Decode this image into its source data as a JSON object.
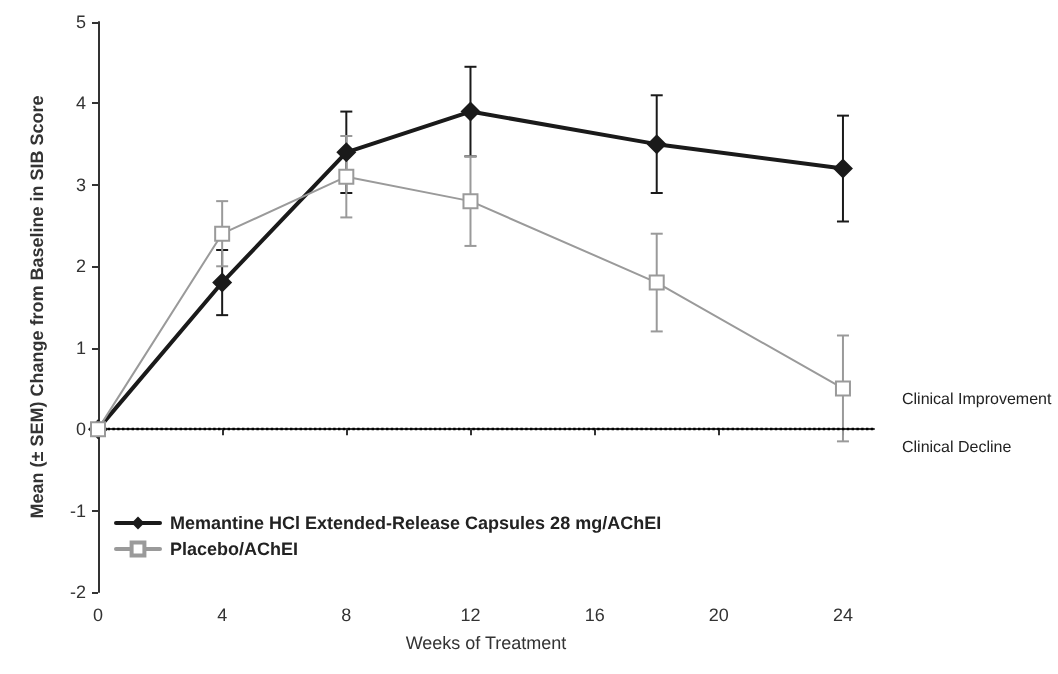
{
  "chart_data": {
    "type": "line",
    "xlabel": "Weeks of Treatment",
    "ylabel": "Mean (± SEM) Change from Baseline in SIB Score",
    "x": [
      0,
      4,
      8,
      12,
      18,
      24
    ],
    "series": [
      {
        "name": "Memantine HCl Extended-Release Capsules 28 mg/AChEI",
        "color": "#1a1a1a",
        "marker": "diamond",
        "values": [
          0,
          1.8,
          3.4,
          3.9,
          3.5,
          3.2
        ],
        "errors": [
          null,
          0.4,
          0.5,
          0.55,
          0.6,
          0.65
        ]
      },
      {
        "name": "Placebo/AChEI",
        "color": "#9a9a9a",
        "marker": "square",
        "values": [
          0,
          2.4,
          3.1,
          2.8,
          1.8,
          0.5
        ],
        "errors": [
          null,
          0.4,
          0.5,
          0.55,
          0.6,
          0.65
        ]
      }
    ],
    "xlim": [
      0,
      25
    ],
    "xticks": [
      0,
      4,
      8,
      12,
      16,
      20,
      24
    ],
    "ylim": [
      -2,
      5
    ],
    "yticks": [
      -2,
      -1,
      0,
      1,
      2,
      3,
      4,
      5
    ],
    "ref_lines": [
      {
        "axis": "y",
        "value": 0,
        "color": "#000000",
        "line_style": "dotted"
      }
    ],
    "annotations": [
      "Clinical Improvement",
      "Clinical Decline"
    ],
    "grid": false,
    "legend": "bottom left",
    "line_style": "solid"
  }
}
